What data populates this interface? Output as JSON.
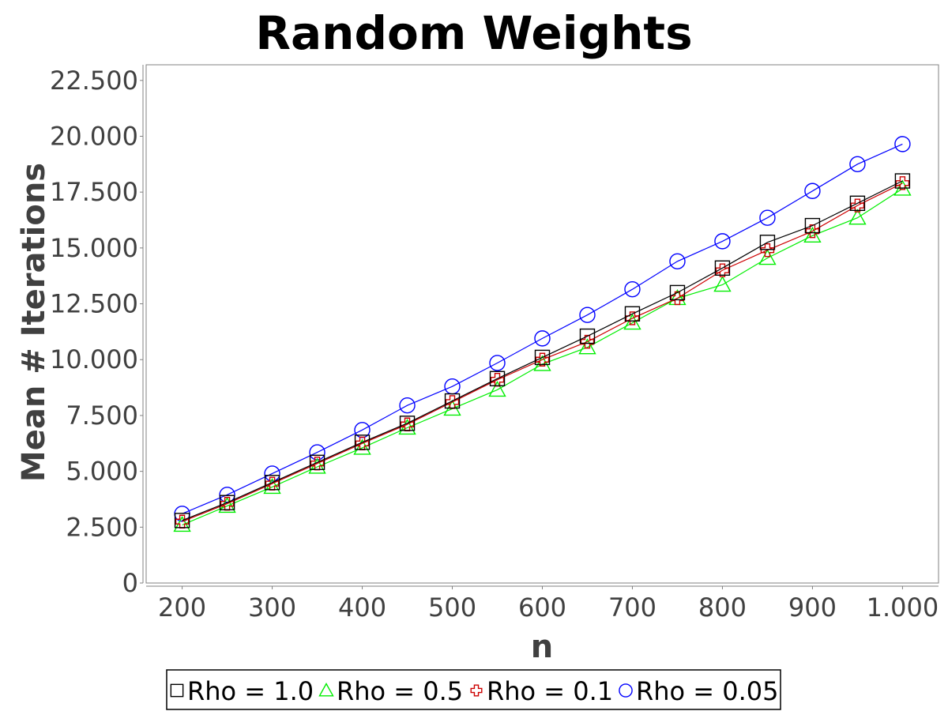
{
  "chart_data": {
    "type": "line",
    "title": "Random Weights",
    "xlabel": "n",
    "ylabel": "Mean # Iterations",
    "x": [
      200,
      250,
      300,
      350,
      400,
      450,
      500,
      550,
      600,
      650,
      700,
      750,
      800,
      850,
      900,
      950,
      1000
    ],
    "xlim": [
      160,
      1040
    ],
    "ylim": [
      0,
      23200
    ],
    "x_ticks": [
      200,
      300,
      400,
      500,
      600,
      700,
      800,
      900,
      1000
    ],
    "x_tick_labels": [
      "200",
      "300",
      "400",
      "500",
      "600",
      "700",
      "800",
      "900",
      "1.000"
    ],
    "y_ticks": [
      0,
      2500,
      5000,
      7500,
      10000,
      12500,
      15000,
      17500,
      20000,
      22500
    ],
    "y_tick_labels": [
      "0",
      "2.500",
      "5.000",
      "7.500",
      "10.000",
      "12.500",
      "15.000",
      "17.500",
      "20.000",
      "22.500"
    ],
    "grid": false,
    "legend_position": "bottom-center",
    "series": [
      {
        "name": "Rho = 1.0",
        "marker": "square",
        "color": "#000000",
        "values": [
          2800,
          3600,
          4500,
          5400,
          6300,
          7150,
          8150,
          9150,
          10100,
          11050,
          12050,
          13000,
          14100,
          15250,
          16000,
          17000,
          18000
        ]
      },
      {
        "name": "Rho = 0.5",
        "marker": "triangle",
        "color": "#00ee00",
        "values": [
          2600,
          3450,
          4300,
          5200,
          6050,
          6950,
          7800,
          8650,
          9800,
          10550,
          11650,
          12750,
          13350,
          14550,
          15550,
          16350,
          17650
        ]
      },
      {
        "name": "Rho = 0.1",
        "marker": "cross",
        "color": "#cc0000",
        "values": [
          2750,
          3550,
          4450,
          5350,
          6250,
          7100,
          8100,
          9100,
          10000,
          10800,
          11850,
          12750,
          14000,
          14900,
          15750,
          16900,
          17900
        ]
      },
      {
        "name": "Rho = 0.05",
        "marker": "circle",
        "color": "#0000ff",
        "values": [
          3100,
          3950,
          4900,
          5850,
          6850,
          7950,
          8800,
          9850,
          10950,
          12000,
          13150,
          14400,
          15300,
          16350,
          17550,
          18750,
          19650
        ]
      }
    ]
  }
}
